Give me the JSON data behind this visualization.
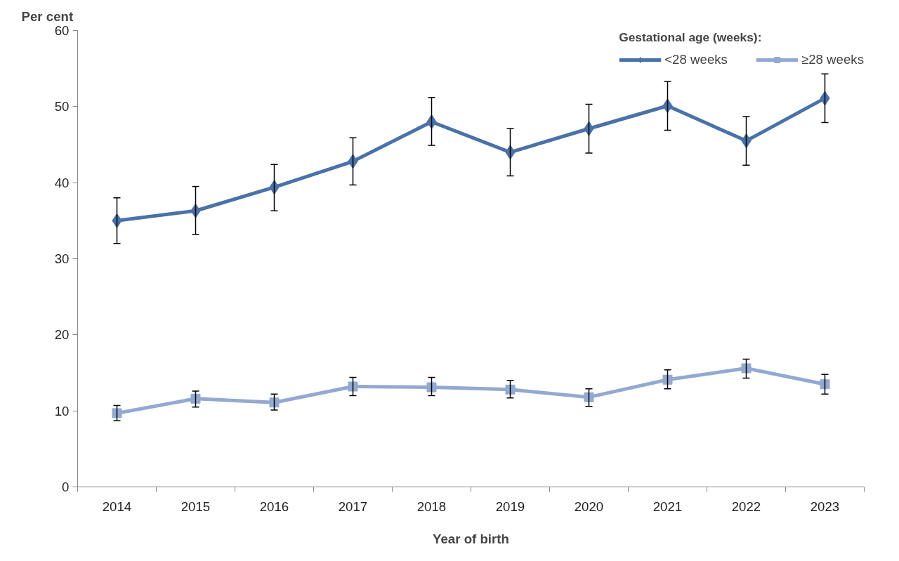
{
  "chart_data": {
    "type": "line",
    "ylabel": "Per cent",
    "xlabel": "Year of birth",
    "legend_title": "Gestational age (weeks):",
    "categories": [
      "2014",
      "2015",
      "2016",
      "2017",
      "2018",
      "2019",
      "2020",
      "2021",
      "2022",
      "2023"
    ],
    "series": [
      {
        "name": "<28 weeks",
        "color": "#4a71a8",
        "marker": "diamond",
        "values": [
          35.0,
          36.3,
          39.4,
          42.8,
          48.0,
          44.0,
          47.1,
          50.1,
          45.5,
          51.1
        ],
        "errors": [
          [
            32.0,
            38.0
          ],
          [
            33.2,
            39.5
          ],
          [
            36.3,
            42.4
          ],
          [
            39.7,
            45.9
          ],
          [
            44.9,
            51.2
          ],
          [
            40.9,
            47.1
          ],
          [
            43.9,
            50.3
          ],
          [
            46.9,
            53.3
          ],
          [
            42.3,
            48.7
          ],
          [
            47.9,
            54.3
          ]
        ]
      },
      {
        "name": "≥28 weeks",
        "color": "#93a9d1",
        "marker": "square",
        "values": [
          9.7,
          11.6,
          11.1,
          13.2,
          13.1,
          12.8,
          11.8,
          14.1,
          15.6,
          13.5
        ],
        "errors": [
          [
            8.7,
            10.7
          ],
          [
            10.5,
            12.6
          ],
          [
            10.1,
            12.2
          ],
          [
            12.0,
            14.4
          ],
          [
            12.0,
            14.4
          ],
          [
            11.7,
            14.0
          ],
          [
            10.6,
            12.9
          ],
          [
            12.9,
            15.4
          ],
          [
            14.3,
            16.8
          ],
          [
            12.2,
            14.8
          ]
        ]
      }
    ],
    "ylim": [
      0,
      60
    ],
    "yticks": [
      0,
      10,
      20,
      30,
      40,
      50,
      60
    ],
    "grid": false,
    "legend": "top right",
    "line_style": "solid"
  }
}
